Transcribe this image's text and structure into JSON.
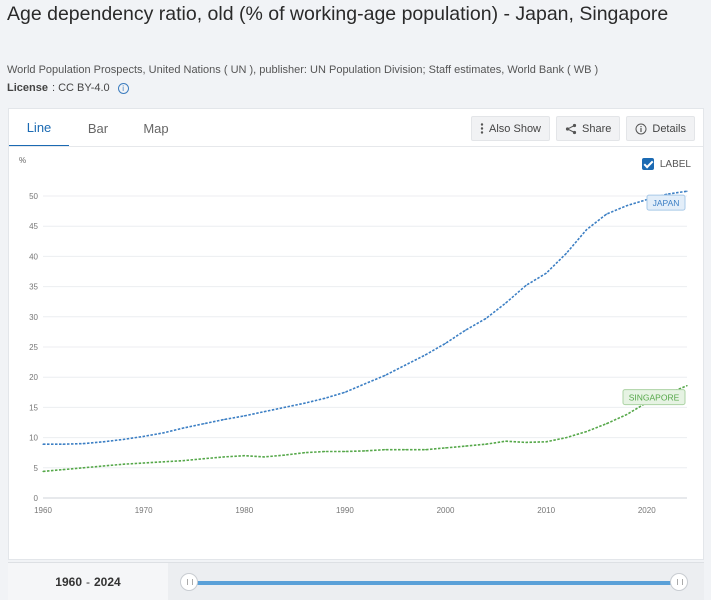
{
  "page": {
    "title": "Age dependency ratio, old (% of working-age population) - Japan, Singapore",
    "source": "World Population Prospects, United Nations ( UN ), publisher: UN Population Division; Staff estimates, World Bank ( WB )",
    "license_label": "License",
    "license_value": ": CC BY-4.0"
  },
  "tabs": [
    {
      "label": "Line",
      "active": true
    },
    {
      "label": "Bar",
      "active": false
    },
    {
      "label": "Map",
      "active": false
    }
  ],
  "actions": {
    "also_show": "Also Show",
    "share": "Share",
    "details": "Details"
  },
  "label_toggle": {
    "text": "LABEL",
    "checked": true
  },
  "range": {
    "start": "1960",
    "end": "2024",
    "separator": "-"
  },
  "colors": {
    "japan": "#3c7fc4",
    "singapore": "#56a84a",
    "accent": "#1b6ab3"
  },
  "chart_data": {
    "type": "line",
    "ylabel": "%",
    "xlim": [
      1960,
      2024
    ],
    "ylim": [
      0,
      52
    ],
    "yticks": [
      0,
      5,
      10,
      15,
      20,
      25,
      30,
      35,
      40,
      45,
      50
    ],
    "xticks": [
      1960,
      1970,
      1980,
      1990,
      2000,
      2010,
      2020
    ],
    "grid": true,
    "series": [
      {
        "name": "JAPAN",
        "color": "#3c7fc4",
        "x": [
          1960,
          1962,
          1964,
          1966,
          1968,
          1970,
          1972,
          1974,
          1976,
          1978,
          1980,
          1982,
          1984,
          1986,
          1988,
          1990,
          1992,
          1994,
          1996,
          1998,
          2000,
          2002,
          2004,
          2006,
          2008,
          2010,
          2012,
          2014,
          2016,
          2018,
          2020,
          2022,
          2024
        ],
        "values": [
          8.9,
          8.9,
          9.0,
          9.3,
          9.7,
          10.2,
          10.8,
          11.6,
          12.3,
          13.0,
          13.6,
          14.3,
          15.0,
          15.7,
          16.5,
          17.5,
          18.9,
          20.3,
          22.0,
          23.7,
          25.6,
          27.8,
          29.7,
          32.3,
          35.2,
          37.2,
          40.5,
          44.4,
          47.0,
          48.4,
          49.4,
          50.3,
          50.8
        ]
      },
      {
        "name": "SINGAPORE",
        "color": "#56a84a",
        "x": [
          1960,
          1962,
          1964,
          1966,
          1968,
          1970,
          1972,
          1974,
          1976,
          1978,
          1980,
          1982,
          1984,
          1986,
          1988,
          1990,
          1992,
          1994,
          1996,
          1998,
          2000,
          2002,
          2004,
          2006,
          2008,
          2010,
          2012,
          2014,
          2016,
          2018,
          2020,
          2022,
          2024
        ],
        "values": [
          4.4,
          4.7,
          5.0,
          5.3,
          5.6,
          5.8,
          6.0,
          6.2,
          6.5,
          6.8,
          7.0,
          6.8,
          7.1,
          7.5,
          7.7,
          7.7,
          7.8,
          8.0,
          8.0,
          8.0,
          8.3,
          8.6,
          8.9,
          9.4,
          9.2,
          9.3,
          10.0,
          11.0,
          12.3,
          13.8,
          15.8,
          17.2,
          18.6
        ]
      }
    ]
  }
}
